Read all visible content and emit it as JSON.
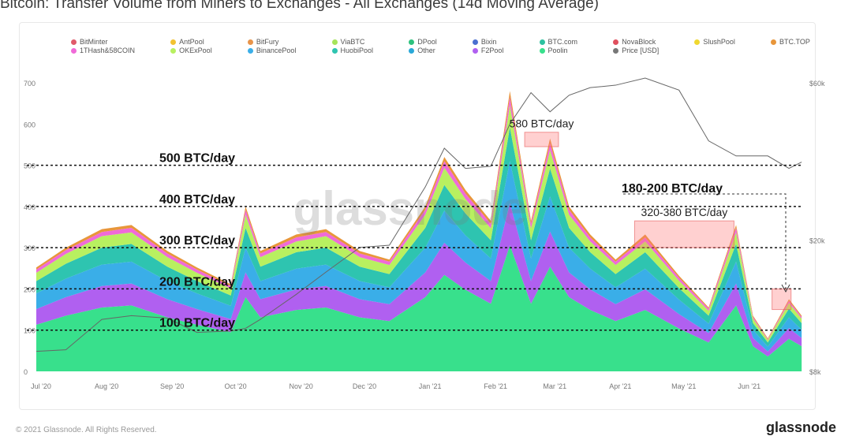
{
  "title": "Bitcoin: Transfer Volume from Miners to Exchanges - All Exchanges (14d Moving Average)",
  "legend": [
    {
      "name": "BitMinter",
      "color": "#e05a6a"
    },
    {
      "name": "AntPool",
      "color": "#f2c230"
    },
    {
      "name": "BitFury",
      "color": "#e8944a"
    },
    {
      "name": "ViaBTC",
      "color": "#a6e45a"
    },
    {
      "name": "DPool",
      "color": "#2ec27e"
    },
    {
      "name": "Bixin",
      "color": "#4a6fd0"
    },
    {
      "name": "BTC.com",
      "color": "#2ec2a0"
    },
    {
      "name": "NovaBlock",
      "color": "#e0505e"
    },
    {
      "name": "SlushPool",
      "color": "#f0d830"
    },
    {
      "name": "BTC.TOP",
      "color": "#e8963a"
    },
    {
      "name": "1THash&58COIN",
      "color": "#f06ad8"
    },
    {
      "name": "OKExPool",
      "color": "#b8f060"
    },
    {
      "name": "BinancePool",
      "color": "#3aaee8"
    },
    {
      "name": "HuobiPool",
      "color": "#2ec4b0"
    },
    {
      "name": "Other",
      "color": "#2aa8d8"
    },
    {
      "name": "F2Pool",
      "color": "#b060f0"
    },
    {
      "name": "Poolin",
      "color": "#38e08c"
    },
    {
      "name": "Price [USD]",
      "color": "#777777"
    }
  ],
  "chart_data": {
    "type": "area",
    "title": "Bitcoin: Transfer Volume from Miners to Exchanges - All Exchanges (14d Moving Average)",
    "x": [
      "2020-07-01",
      "2020-07-15",
      "2020-08-01",
      "2020-08-15",
      "2020-09-01",
      "2020-09-15",
      "2020-10-01",
      "2020-10-08",
      "2020-10-15",
      "2020-11-01",
      "2020-11-15",
      "2020-12-01",
      "2020-12-15",
      "2021-01-01",
      "2021-01-10",
      "2021-01-20",
      "2021-02-01",
      "2021-02-10",
      "2021-02-20",
      "2021-03-01",
      "2021-03-10",
      "2021-03-20",
      "2021-04-01",
      "2021-04-15",
      "2021-05-01",
      "2021-05-15",
      "2021-05-28",
      "2021-06-05",
      "2021-06-12",
      "2021-06-22",
      "2021-06-28"
    ],
    "series": [
      {
        "name": "Poolin",
        "color": "#38e08c",
        "values": [
          113,
          135,
          155,
          160,
          131,
          113,
          95,
          180,
          131,
          149,
          155,
          131,
          122,
          180,
          234,
          198,
          164,
          306,
          164,
          254,
          180,
          149,
          122,
          149,
          104,
          70,
          160,
          61,
          36,
          79,
          61
        ]
      },
      {
        "name": "F2Pool",
        "color": "#b060f0",
        "values": [
          38,
          45,
          52,
          53,
          44,
          38,
          32,
          60,
          44,
          50,
          52,
          44,
          41,
          60,
          78,
          66,
          55,
          102,
          55,
          85,
          60,
          50,
          41,
          50,
          35,
          23,
          53,
          20,
          12,
          26,
          20
        ]
      },
      {
        "name": "BinancePool",
        "color": "#3aaee8",
        "values": [
          38,
          45,
          52,
          53,
          44,
          38,
          32,
          60,
          44,
          50,
          52,
          44,
          41,
          60,
          78,
          66,
          55,
          102,
          55,
          85,
          60,
          50,
          41,
          50,
          35,
          23,
          53,
          20,
          12,
          26,
          20
        ]
      },
      {
        "name": "HuobiPool",
        "color": "#2ec4b0",
        "values": [
          30,
          36,
          41,
          43,
          35,
          30,
          25,
          48,
          35,
          40,
          41,
          35,
          32,
          48,
          62,
          53,
          44,
          82,
          44,
          68,
          48,
          40,
          32,
          40,
          28,
          19,
          43,
          16,
          10,
          21,
          16
        ]
      },
      {
        "name": "OKExPool",
        "color": "#b8f060",
        "values": [
          20,
          24,
          28,
          28,
          23,
          20,
          17,
          32,
          23,
          26,
          28,
          23,
          22,
          32,
          42,
          35,
          29,
          54,
          29,
          45,
          32,
          26,
          22,
          26,
          18,
          12,
          28,
          11,
          6,
          14,
          11
        ]
      },
      {
        "name": "1THash&58COIN",
        "color": "#f06ad8",
        "values": [
          8,
          9,
          10,
          11,
          9,
          8,
          6,
          12,
          9,
          10,
          10,
          9,
          8,
          12,
          16,
          13,
          11,
          20,
          11,
          17,
          12,
          10,
          8,
          10,
          7,
          5,
          11,
          4,
          2,
          5,
          4
        ]
      },
      {
        "name": "BTC.TOP",
        "color": "#e8963a",
        "values": [
          5,
          6,
          7,
          7,
          6,
          5,
          4,
          8,
          6,
          7,
          7,
          6,
          5,
          8,
          10,
          9,
          7,
          14,
          7,
          11,
          8,
          7,
          5,
          7,
          5,
          3,
          7,
          3,
          2,
          4,
          3
        ]
      }
    ],
    "price": {
      "name": "Price [USD]",
      "values": [
        9200,
        9300,
        11500,
        11800,
        11600,
        10500,
        10600,
        10800,
        11500,
        13700,
        16000,
        19000,
        19300,
        29000,
        38000,
        33000,
        33500,
        45000,
        56000,
        49000,
        55000,
        58000,
        59000,
        62000,
        57000,
        40000,
        36000,
        36000,
        36000,
        33000,
        34500
      ]
    },
    "ylabel_left_ticks": [
      "0",
      "100",
      "200",
      "300",
      "400",
      "500",
      "600",
      "700"
    ],
    "ylabel_right_ticks": [
      "$8k",
      "$20k",
      "$60k"
    ],
    "ylim": [
      0,
      700
    ],
    "price_range_usd": [
      8000,
      60000
    ],
    "xticks": [
      "Jul '20",
      "Aug '20",
      "Sep '20",
      "Oct '20",
      "Nov '20",
      "Dec '20",
      "Jan '21",
      "Feb '21",
      "Mar '21",
      "Apr '21",
      "May '21",
      "Jun '21"
    ],
    "reference_lines": [
      {
        "value": 100,
        "label": "100 BTC/day"
      },
      {
        "value": 200,
        "label": "200 BTC/day"
      },
      {
        "value": 300,
        "label": "300 BTC/day"
      },
      {
        "value": 400,
        "label": "400 BTC/day"
      },
      {
        "value": 500,
        "label": "500 BTC/day"
      }
    ],
    "highlights": [
      {
        "label": "580 BTC/day",
        "from": "2021-02-17",
        "to": "2021-03-05",
        "range": [
          545,
          580
        ]
      },
      {
        "label": "320-380 BTC/day",
        "from": "2021-04-10",
        "to": "2021-05-27",
        "range": [
          300,
          365
        ]
      },
      {
        "label": "",
        "from": "2021-06-14",
        "to": "2021-06-23",
        "range": [
          150,
          200
        ]
      }
    ],
    "callout": "180-200 BTC/day",
    "watermark": "glassnode"
  },
  "footer": {
    "copyright": "© 2021 Glassnode. All Rights Reserved.",
    "brand": "glassnode"
  }
}
